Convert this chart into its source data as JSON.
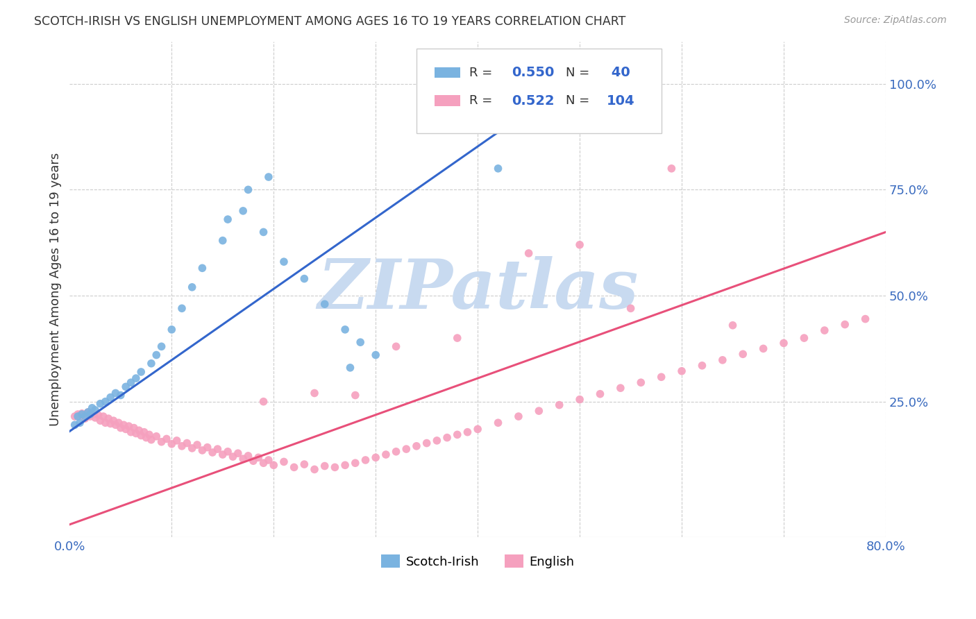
{
  "title": "SCOTCH-IRISH VS ENGLISH UNEMPLOYMENT AMONG AGES 16 TO 19 YEARS CORRELATION CHART",
  "source": "Source: ZipAtlas.com",
  "ylabel": "Unemployment Among Ages 16 to 19 years",
  "xlim": [
    0.0,
    0.8
  ],
  "ylim": [
    -0.07,
    1.1
  ],
  "xticks": [
    0.0,
    0.1,
    0.2,
    0.3,
    0.4,
    0.5,
    0.6,
    0.7,
    0.8
  ],
  "yticks_right": [
    0.25,
    0.5,
    0.75,
    1.0
  ],
  "blue_R": 0.55,
  "blue_N": 40,
  "pink_R": 0.522,
  "pink_N": 104,
  "blue_color": "#7ab3e0",
  "pink_color": "#f5a0be",
  "blue_line_color": "#3366cc",
  "pink_line_color": "#e8507a",
  "watermark_text": "ZIPatlas",
  "watermark_color": "#c8daf0",
  "blue_line_x": [
    0.0,
    0.5
  ],
  "blue_line_y": [
    0.18,
    1.02
  ],
  "pink_line_x": [
    0.0,
    0.8
  ],
  "pink_line_y": [
    -0.04,
    0.65
  ],
  "blue_x": [
    0.005,
    0.008,
    0.01,
    0.012,
    0.015,
    0.018,
    0.02,
    0.022,
    0.025,
    0.03,
    0.035,
    0.04,
    0.045,
    0.05,
    0.055,
    0.06,
    0.065,
    0.07,
    0.08,
    0.085,
    0.09,
    0.1,
    0.11,
    0.12,
    0.13,
    0.15,
    0.17,
    0.19,
    0.21,
    0.23,
    0.25,
    0.27,
    0.285,
    0.3,
    0.155,
    0.175,
    0.195,
    0.275,
    0.42,
    0.5
  ],
  "blue_y": [
    0.195,
    0.215,
    0.2,
    0.22,
    0.215,
    0.225,
    0.22,
    0.235,
    0.23,
    0.245,
    0.25,
    0.26,
    0.27,
    0.265,
    0.285,
    0.295,
    0.305,
    0.32,
    0.34,
    0.36,
    0.38,
    0.42,
    0.47,
    0.52,
    0.565,
    0.63,
    0.7,
    0.65,
    0.58,
    0.54,
    0.48,
    0.42,
    0.39,
    0.36,
    0.68,
    0.75,
    0.78,
    0.33,
    0.8,
    1.0
  ],
  "pink_x": [
    0.005,
    0.008,
    0.01,
    0.012,
    0.015,
    0.018,
    0.02,
    0.022,
    0.025,
    0.028,
    0.03,
    0.033,
    0.035,
    0.038,
    0.04,
    0.043,
    0.045,
    0.048,
    0.05,
    0.053,
    0.055,
    0.058,
    0.06,
    0.063,
    0.065,
    0.068,
    0.07,
    0.073,
    0.075,
    0.078,
    0.08,
    0.085,
    0.09,
    0.095,
    0.1,
    0.105,
    0.11,
    0.115,
    0.12,
    0.125,
    0.13,
    0.135,
    0.14,
    0.145,
    0.15,
    0.155,
    0.16,
    0.165,
    0.17,
    0.175,
    0.18,
    0.185,
    0.19,
    0.195,
    0.2,
    0.21,
    0.22,
    0.23,
    0.24,
    0.25,
    0.26,
    0.27,
    0.28,
    0.29,
    0.3,
    0.31,
    0.32,
    0.33,
    0.34,
    0.35,
    0.36,
    0.37,
    0.38,
    0.39,
    0.4,
    0.42,
    0.44,
    0.46,
    0.48,
    0.5,
    0.52,
    0.54,
    0.56,
    0.58,
    0.6,
    0.62,
    0.64,
    0.66,
    0.68,
    0.7,
    0.72,
    0.74,
    0.76,
    0.78,
    0.59,
    0.65,
    0.55,
    0.5,
    0.45,
    0.38,
    0.32,
    0.28,
    0.24,
    0.19
  ],
  "pink_y": [
    0.215,
    0.22,
    0.218,
    0.222,
    0.21,
    0.225,
    0.215,
    0.22,
    0.212,
    0.218,
    0.205,
    0.215,
    0.2,
    0.21,
    0.198,
    0.205,
    0.195,
    0.2,
    0.188,
    0.195,
    0.185,
    0.192,
    0.178,
    0.188,
    0.175,
    0.182,
    0.17,
    0.178,
    0.165,
    0.172,
    0.16,
    0.168,
    0.155,
    0.162,
    0.15,
    0.158,
    0.145,
    0.152,
    0.14,
    0.148,
    0.135,
    0.142,
    0.13,
    0.138,
    0.125,
    0.132,
    0.12,
    0.128,
    0.115,
    0.122,
    0.11,
    0.118,
    0.105,
    0.112,
    0.1,
    0.108,
    0.095,
    0.102,
    0.09,
    0.098,
    0.095,
    0.1,
    0.105,
    0.112,
    0.118,
    0.125,
    0.132,
    0.138,
    0.145,
    0.152,
    0.158,
    0.165,
    0.172,
    0.178,
    0.185,
    0.2,
    0.215,
    0.228,
    0.242,
    0.255,
    0.268,
    0.282,
    0.295,
    0.308,
    0.322,
    0.335,
    0.348,
    0.362,
    0.375,
    0.388,
    0.4,
    0.418,
    0.432,
    0.445,
    0.8,
    0.43,
    0.47,
    0.62,
    0.6,
    0.4,
    0.38,
    0.265,
    0.27,
    0.25
  ]
}
